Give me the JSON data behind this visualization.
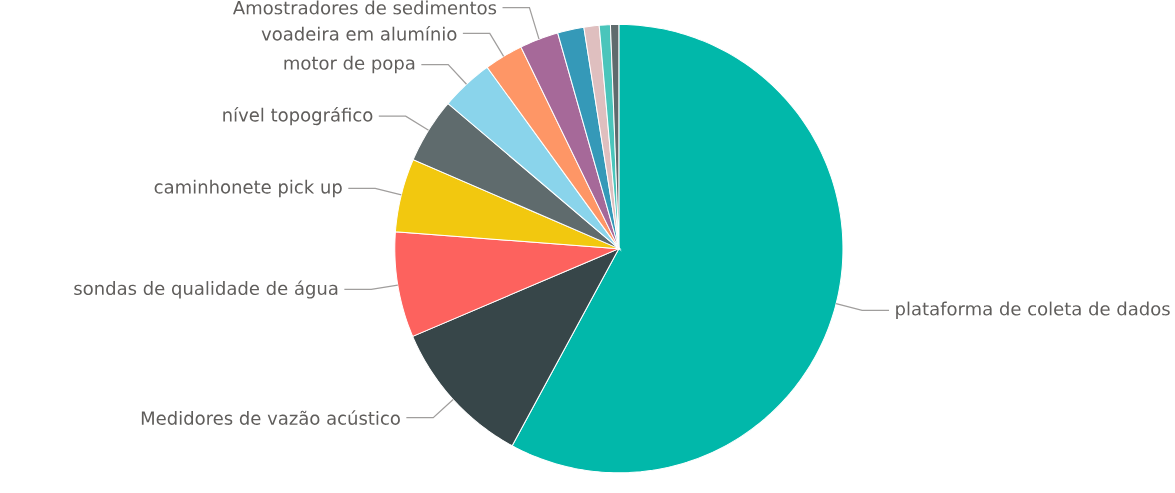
{
  "chart_data": {
    "type": "pie",
    "categories": [
      "plataforma de coleta de dados",
      "Medidores de vazão acústico",
      "sondas de qualidade de água",
      "caminhonete pick up",
      "nível topográfico",
      "motor de popa",
      "voadeira em alumínio",
      "Amostradores de sedimentos",
      null,
      null,
      null,
      null
    ],
    "values": [
      57.9,
      10.7,
      7.6,
      5.3,
      4.7,
      3.8,
      2.8,
      2.8,
      1.9,
      1.1,
      0.8,
      0.6
    ],
    "colors": [
      "#01b8aa",
      "#374649",
      "#fd625e",
      "#f2c80f",
      "#5f6b6d",
      "#8ad4eb",
      "#fe9666",
      "#a66999",
      "#3599b8",
      "#dfbfbf",
      "#4ac5bb",
      "#5f6b6d"
    ]
  }
}
